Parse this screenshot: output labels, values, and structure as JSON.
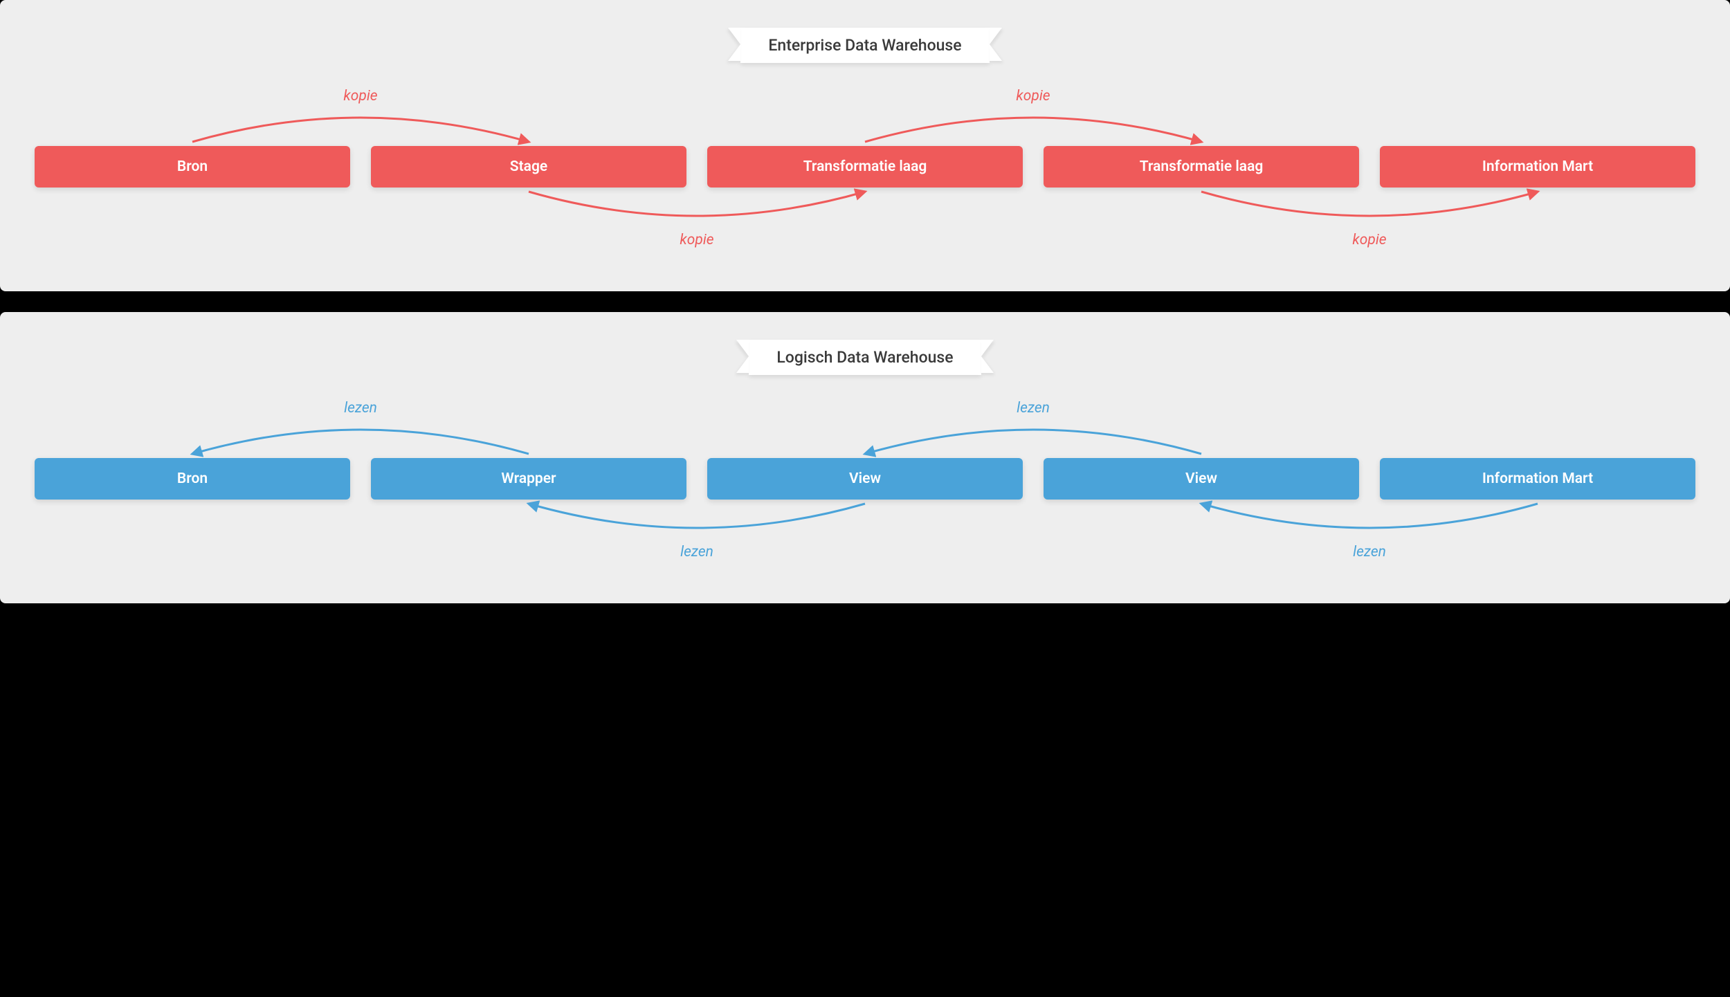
{
  "colors": {
    "panel_bg": "#eeeeee",
    "page_bg": "#000000",
    "banner_bg": "#ffffff",
    "banner_text": "#3a3a3a",
    "node_text": "#ffffff",
    "red": "#ef5a5a",
    "blue": "#4aa3d9"
  },
  "typography": {
    "banner_fontsize": 23,
    "node_fontsize": 21,
    "edge_label_fontsize": 21,
    "edge_label_style": "italic"
  },
  "panels": [
    {
      "title": "Enterprise Data Warehouse",
      "node_color": "#ef5a5a",
      "arrow_color": "#ef5a5a",
      "label_color": "#ef5a5a",
      "nodes": [
        "Bron",
        "Stage",
        "Transformatie laag",
        "Transformatie laag",
        "Information Mart"
      ],
      "edges": [
        {
          "from": 0,
          "to": 1,
          "pos": "top",
          "label": "kopie",
          "dir": "right"
        },
        {
          "from": 1,
          "to": 2,
          "pos": "bottom",
          "label": "kopie",
          "dir": "right"
        },
        {
          "from": 2,
          "to": 3,
          "pos": "top",
          "label": "kopie",
          "dir": "right"
        },
        {
          "from": 3,
          "to": 4,
          "pos": "bottom",
          "label": "kopie",
          "dir": "right"
        }
      ]
    },
    {
      "title": "Logisch Data Warehouse",
      "node_color": "#4aa3d9",
      "arrow_color": "#4aa3d9",
      "label_color": "#4aa3d9",
      "nodes": [
        "Bron",
        "Wrapper",
        "View",
        "View",
        "Information Mart"
      ],
      "edges": [
        {
          "from": 0,
          "to": 1,
          "pos": "top",
          "label": "lezen",
          "dir": "left"
        },
        {
          "from": 1,
          "to": 2,
          "pos": "bottom",
          "label": "lezen",
          "dir": "left"
        },
        {
          "from": 2,
          "to": 3,
          "pos": "top",
          "label": "lezen",
          "dir": "left"
        },
        {
          "from": 3,
          "to": 4,
          "pos": "bottom",
          "label": "lezen",
          "dir": "left"
        }
      ]
    }
  ]
}
